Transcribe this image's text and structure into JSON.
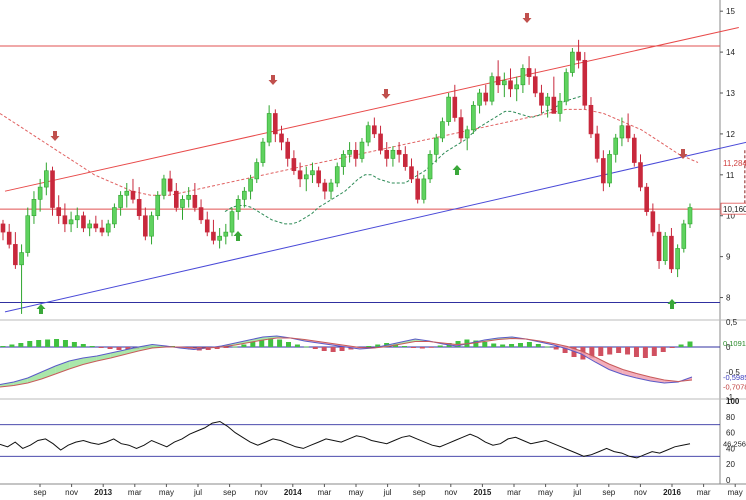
{
  "chart_data": [
    {
      "type": "candlestick",
      "panel": "price",
      "title": "",
      "ylim": [
        7.5,
        15.2
      ],
      "y_ticks": [
        "15",
        "14",
        "13",
        "12",
        "11",
        "10",
        "9",
        "8"
      ],
      "x_labels": [
        "sep",
        "nov",
        "2013",
        "mar",
        "may",
        "jul",
        "sep",
        "nov",
        "2014",
        "mar",
        "may",
        "jul",
        "sep",
        "nov",
        "2015",
        "mar",
        "may",
        "jul",
        "sep",
        "nov",
        "2016",
        "mar",
        "may"
      ],
      "x_labels_bold": [
        "2013",
        "2014",
        "2015",
        "2016"
      ],
      "ohlc_weekly": [
        [
          9.8,
          9.9,
          9.4,
          9.6
        ],
        [
          9.6,
          9.8,
          9.2,
          9.3
        ],
        [
          9.3,
          9.6,
          8.7,
          8.8
        ],
        [
          8.8,
          9.3,
          7.6,
          9.1
        ],
        [
          9.1,
          10.2,
          9.0,
          10.0
        ],
        [
          10.0,
          10.6,
          9.8,
          10.4
        ],
        [
          10.4,
          10.9,
          10.1,
          10.7
        ],
        [
          10.7,
          11.3,
          10.5,
          11.1
        ],
        [
          11.1,
          11.2,
          10.0,
          10.2
        ],
        [
          10.2,
          10.5,
          9.8,
          10.0
        ],
        [
          10.0,
          10.3,
          9.6,
          9.8
        ],
        [
          9.8,
          10.1,
          9.6,
          9.9
        ],
        [
          9.9,
          10.2,
          9.7,
          10.0
        ],
        [
          10.0,
          10.1,
          9.6,
          9.7
        ],
        [
          9.7,
          9.9,
          9.5,
          9.8
        ],
        [
          9.8,
          10.0,
          9.6,
          9.7
        ],
        [
          9.7,
          9.9,
          9.5,
          9.6
        ],
        [
          9.6,
          9.9,
          9.5,
          9.8
        ],
        [
          9.8,
          10.3,
          9.7,
          10.2
        ],
        [
          10.2,
          10.6,
          10.0,
          10.5
        ],
        [
          10.5,
          10.8,
          10.2,
          10.6
        ],
        [
          10.6,
          10.9,
          10.3,
          10.4
        ],
        [
          10.4,
          10.7,
          9.9,
          10.0
        ],
        [
          10.0,
          10.2,
          9.4,
          9.5
        ],
        [
          9.5,
          10.1,
          9.3,
          10.0
        ],
        [
          10.0,
          10.6,
          9.9,
          10.5
        ],
        [
          10.5,
          11.0,
          10.4,
          10.9
        ],
        [
          10.9,
          11.1,
          10.5,
          10.6
        ],
        [
          10.6,
          10.8,
          10.1,
          10.2
        ],
        [
          10.2,
          10.5,
          9.9,
          10.4
        ],
        [
          10.4,
          10.7,
          10.2,
          10.5
        ],
        [
          10.5,
          10.8,
          10.1,
          10.2
        ],
        [
          10.2,
          10.4,
          9.8,
          9.9
        ],
        [
          9.9,
          10.1,
          9.5,
          9.6
        ],
        [
          9.6,
          9.9,
          9.3,
          9.4
        ],
        [
          9.4,
          9.7,
          9.2,
          9.5
        ],
        [
          9.5,
          9.8,
          9.3,
          9.6
        ],
        [
          9.6,
          10.2,
          9.5,
          10.1
        ],
        [
          10.1,
          10.5,
          9.9,
          10.4
        ],
        [
          10.4,
          10.7,
          10.2,
          10.6
        ],
        [
          10.6,
          11.0,
          10.4,
          10.9
        ],
        [
          10.9,
          11.4,
          10.8,
          11.3
        ],
        [
          11.3,
          11.9,
          11.2,
          11.8
        ],
        [
          11.8,
          12.7,
          11.7,
          12.5
        ],
        [
          12.5,
          12.6,
          11.8,
          12.0
        ],
        [
          12.0,
          12.2,
          11.6,
          11.8
        ],
        [
          11.8,
          11.9,
          11.2,
          11.4
        ],
        [
          11.4,
          11.6,
          11.0,
          11.1
        ],
        [
          11.1,
          11.3,
          10.7,
          10.9
        ],
        [
          10.9,
          11.2,
          10.6,
          11.0
        ],
        [
          11.0,
          11.3,
          10.8,
          11.1
        ],
        [
          11.1,
          11.2,
          10.7,
          10.8
        ],
        [
          10.8,
          10.9,
          10.4,
          10.6
        ],
        [
          10.6,
          10.9,
          10.4,
          10.8
        ],
        [
          10.8,
          11.3,
          10.7,
          11.2
        ],
        [
          11.2,
          11.6,
          11.0,
          11.5
        ],
        [
          11.5,
          11.8,
          11.3,
          11.6
        ],
        [
          11.6,
          11.8,
          11.2,
          11.4
        ],
        [
          11.4,
          11.9,
          11.3,
          11.8
        ],
        [
          11.8,
          12.3,
          11.7,
          12.2
        ],
        [
          12.2,
          12.4,
          11.9,
          12.0
        ],
        [
          12.0,
          12.2,
          11.5,
          11.6
        ],
        [
          11.6,
          11.8,
          11.2,
          11.4
        ],
        [
          11.4,
          11.7,
          11.2,
          11.6
        ],
        [
          11.6,
          11.8,
          11.3,
          11.5
        ],
        [
          11.5,
          11.7,
          11.1,
          11.2
        ],
        [
          11.2,
          11.4,
          10.8,
          10.9
        ],
        [
          10.9,
          11.1,
          10.3,
          10.4
        ],
        [
          10.4,
          11.0,
          10.3,
          10.9
        ],
        [
          10.9,
          11.6,
          10.8,
          11.5
        ],
        [
          11.5,
          12.0,
          11.3,
          11.9
        ],
        [
          11.9,
          12.4,
          11.8,
          12.3
        ],
        [
          12.3,
          13.0,
          12.2,
          12.9
        ],
        [
          12.9,
          13.2,
          12.3,
          12.4
        ],
        [
          12.4,
          12.6,
          11.8,
          11.9
        ],
        [
          11.9,
          12.2,
          11.6,
          12.1
        ],
        [
          12.1,
          12.8,
          12.0,
          12.7
        ],
        [
          12.7,
          13.1,
          12.5,
          13.0
        ],
        [
          13.0,
          13.2,
          12.7,
          12.8
        ],
        [
          12.8,
          13.5,
          12.7,
          13.4
        ],
        [
          13.4,
          13.8,
          13.0,
          13.2
        ],
        [
          13.2,
          13.5,
          12.9,
          13.3
        ],
        [
          13.3,
          13.6,
          12.9,
          13.1
        ],
        [
          13.1,
          13.4,
          12.8,
          13.2
        ],
        [
          13.2,
          13.7,
          13.0,
          13.6
        ],
        [
          13.6,
          13.9,
          13.2,
          13.4
        ],
        [
          13.4,
          13.6,
          12.9,
          13.0
        ],
        [
          13.0,
          13.2,
          12.5,
          12.7
        ],
        [
          12.7,
          13.0,
          12.4,
          12.9
        ],
        [
          12.9,
          13.4,
          12.6,
          12.5
        ],
        [
          12.5,
          13.0,
          12.3,
          12.8
        ],
        [
          12.8,
          13.6,
          12.7,
          13.5
        ],
        [
          13.5,
          14.1,
          13.4,
          14.0
        ],
        [
          14.0,
          14.3,
          13.6,
          13.8
        ],
        [
          13.8,
          14.0,
          12.6,
          12.7
        ],
        [
          12.7,
          12.9,
          11.9,
          12.0
        ],
        [
          12.0,
          12.2,
          11.3,
          11.4
        ],
        [
          11.4,
          11.6,
          10.6,
          10.8
        ],
        [
          10.8,
          11.6,
          10.7,
          11.5
        ],
        [
          11.5,
          12.0,
          11.3,
          11.9
        ],
        [
          11.9,
          12.4,
          11.7,
          12.2
        ],
        [
          12.2,
          12.5,
          11.8,
          11.9
        ],
        [
          11.9,
          12.0,
          11.2,
          11.3
        ],
        [
          11.3,
          11.5,
          10.6,
          10.7
        ],
        [
          10.7,
          10.8,
          10.0,
          10.1
        ],
        [
          10.1,
          10.3,
          9.5,
          9.6
        ],
        [
          9.6,
          9.8,
          8.7,
          8.9
        ],
        [
          8.9,
          9.6,
          8.8,
          9.5
        ],
        [
          9.5,
          9.7,
          8.6,
          8.7
        ],
        [
          8.7,
          9.3,
          8.5,
          9.2
        ],
        [
          9.2,
          9.9,
          9.1,
          9.8
        ],
        [
          9.8,
          10.3,
          9.7,
          10.2
        ]
      ],
      "sma_20_dashed_green": [
        10.1,
        10.2,
        10.25,
        10.25,
        10.2,
        10.1,
        10.0,
        9.9,
        9.85,
        9.8,
        9.8,
        9.85,
        9.95,
        10.05,
        10.2,
        10.3,
        10.4,
        10.5,
        10.6,
        10.75,
        10.9,
        11.0,
        11.0,
        10.9,
        10.85,
        10.8,
        10.8,
        10.8,
        10.9,
        11.0,
        11.1,
        11.25,
        11.4,
        11.55,
        11.65,
        11.75,
        11.85,
        12.0,
        12.15,
        12.25,
        12.35,
        12.45,
        12.55,
        12.55,
        12.5,
        12.45,
        12.4,
        12.45,
        12.55,
        12.6,
        12.7,
        12.8,
        12.85,
        12.9,
        12.95
      ],
      "sma_50_dashed_red": [
        12.5,
        12.2,
        11.9,
        11.6,
        11.3,
        11.0,
        10.8,
        10.6,
        10.5,
        10.5,
        10.6,
        10.7,
        10.8,
        10.9,
        11.0,
        11.1,
        11.2,
        11.3,
        11.4,
        11.5,
        11.6,
        11.7,
        11.8,
        11.9,
        12.0,
        12.1,
        12.2,
        12.3,
        12.4,
        12.5,
        12.6,
        12.6,
        12.5,
        12.3,
        12.1,
        11.8,
        11.5,
        11.3
      ],
      "horizontal_lines": [
        {
          "value": 14.15,
          "color": "#e05050"
        },
        {
          "value": 10.16,
          "color": "#e05050"
        },
        {
          "value": 7.88,
          "color": "#3030a0"
        }
      ],
      "channel_lines": [
        {
          "color": "#e84a4a",
          "from": [
            "2012-aug",
            10.6
          ],
          "to": [
            "2015-aug",
            14.6
          ]
        },
        {
          "color": "#4a4ad8",
          "from": [
            "2012-aug",
            7.65
          ],
          "to": [
            "2015-dec",
            12.2
          ]
        }
      ],
      "last_price_label": "10,160",
      "ma_label": "11,284",
      "resistance_dashed_segment": {
        "from": "2015-sep",
        "to": "2016-mar",
        "value": 10.28
      },
      "down_arrows": [
        "2012-sep",
        "2013-oct",
        "2014-jun",
        "2015-apr",
        "2016-mar"
      ],
      "up_arrows": [
        "2012-aug",
        "2013-sep",
        "2014-nov",
        "2016-mar"
      ],
      "colors": {
        "up": "#2ea52e",
        "down": "#c8283c",
        "up_fill": "#5fd25f"
      }
    },
    {
      "type": "macd",
      "panel": "indicator_1",
      "ylim": [
        -1.0,
        0.5
      ],
      "y_ticks": [
        "0,5",
        "0",
        "-0,5",
        "-1"
      ],
      "labels": [
        "0,1091",
        "-0,5985",
        "-0,7078"
      ],
      "histogram": [
        0.02,
        0.05,
        0.08,
        0.12,
        0.14,
        0.15,
        0.16,
        0.14,
        0.1,
        0.06,
        0.02,
        -0.02,
        -0.04,
        -0.06,
        -0.05,
        -0.04,
        -0.02,
        0.01,
        0.03,
        0.02,
        -0.02,
        -0.05,
        -0.07,
        -0.06,
        -0.04,
        -0.02,
        0.01,
        0.05,
        0.1,
        0.15,
        0.18,
        0.15,
        0.1,
        0.05,
        0.01,
        -0.04,
        -0.08,
        -0.1,
        -0.08,
        -0.05,
        -0.02,
        0.02,
        0.05,
        0.08,
        0.06,
        0.02,
        -0.02,
        -0.03,
        -0.01,
        0.03,
        0.08,
        0.12,
        0.15,
        0.13,
        0.1,
        0.07,
        0.05,
        0.06,
        0.08,
        0.1,
        0.06,
        0.01,
        -0.05,
        -0.12,
        -0.2,
        -0.25,
        -0.22,
        -0.18,
        -0.15,
        -0.12,
        -0.15,
        -0.2,
        -0.22,
        -0.18,
        -0.1,
        -0.02,
        0.05,
        0.11
      ],
      "macd_line": [
        -0.75,
        -0.7,
        -0.62,
        -0.5,
        -0.38,
        -0.28,
        -0.22,
        -0.18,
        -0.12,
        -0.06,
        0.0,
        0.05,
        0.02,
        -0.02,
        -0.05,
        -0.02,
        0.02,
        0.08,
        0.14,
        0.2,
        0.22,
        0.18,
        0.12,
        0.08,
        0.04,
        0.0,
        -0.04,
        -0.02,
        0.04,
        0.1,
        0.16,
        0.12,
        0.06,
        0.02,
        0.08,
        0.14,
        0.18,
        0.2,
        0.16,
        0.1,
        0.04,
        -0.04,
        -0.14,
        -0.3,
        -0.45,
        -0.55,
        -0.62,
        -0.68,
        -0.72,
        -0.7,
        -0.6
      ],
      "signal_line": [
        -0.8,
        -0.77,
        -0.72,
        -0.64,
        -0.54,
        -0.44,
        -0.35,
        -0.28,
        -0.22,
        -0.15,
        -0.08,
        -0.02,
        0.0,
        0.0,
        -0.02,
        -0.02,
        0.0,
        0.04,
        0.09,
        0.14,
        0.18,
        0.18,
        0.15,
        0.11,
        0.07,
        0.03,
        -0.01,
        -0.02,
        0.01,
        0.06,
        0.11,
        0.11,
        0.08,
        0.05,
        0.07,
        0.11,
        0.15,
        0.17,
        0.16,
        0.12,
        0.07,
        0.01,
        -0.08,
        -0.2,
        -0.34,
        -0.45,
        -0.53,
        -0.6,
        -0.66,
        -0.69,
        -0.66
      ]
    },
    {
      "type": "line",
      "panel": "indicator_2",
      "ylim": [
        0,
        100
      ],
      "y_ticks": [
        "100",
        "80",
        "60",
        "40",
        "20",
        "0"
      ],
      "levels": [
        70,
        30
      ],
      "last_value_label": "46,256",
      "values": [
        45,
        42,
        48,
        40,
        44,
        50,
        52,
        46,
        38,
        44,
        48,
        50,
        47,
        45,
        48,
        52,
        46,
        44,
        40,
        44,
        50,
        46,
        42,
        48,
        52,
        58,
        62,
        66,
        72,
        74,
        68,
        60,
        54,
        48,
        44,
        48,
        52,
        50,
        46,
        42,
        40,
        44,
        48,
        52,
        50,
        48,
        52,
        56,
        54,
        50,
        48,
        46,
        50,
        54,
        56,
        52,
        48,
        44,
        42,
        46,
        50,
        54,
        58,
        54,
        48,
        44,
        46,
        52,
        54,
        50,
        46,
        48,
        50,
        46,
        42,
        38,
        34,
        30,
        32,
        36,
        40,
        36,
        34,
        30,
        28,
        32,
        36,
        34,
        38,
        42,
        44,
        46
      ]
    }
  ]
}
